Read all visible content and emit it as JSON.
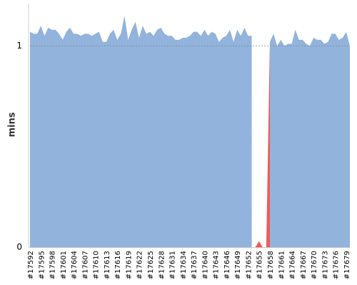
{
  "chart_data": {
    "type": "area",
    "ylabel": "mins",
    "categories": [
      "#17592",
      null,
      null,
      "#17595",
      null,
      null,
      "#17598",
      null,
      null,
      "#17601",
      null,
      null,
      "#17604",
      null,
      null,
      "#17607",
      null,
      null,
      "#17610",
      null,
      null,
      "#17613",
      null,
      null,
      "#17616",
      null,
      null,
      "#17619",
      null,
      null,
      "#17622",
      null,
      null,
      "#17625",
      null,
      null,
      "#17628",
      null,
      null,
      "#17631",
      null,
      null,
      "#17634",
      null,
      null,
      "#17637",
      null,
      null,
      "#17640",
      null,
      null,
      "#17643",
      null,
      null,
      "#17646",
      null,
      null,
      "#17649",
      null,
      null,
      "#17652",
      null,
      null,
      "#17655",
      null,
      null,
      "#17658",
      null,
      null,
      "#17661",
      null,
      null,
      "#17664",
      null,
      null,
      "#17667",
      null,
      null,
      "#17670",
      null,
      null,
      "#17673",
      null,
      null,
      "#17676",
      null,
      null,
      "#17679",
      null
    ],
    "series": [
      {
        "color": "#92b3dc",
        "values": [
          1.07,
          1.06,
          1.06,
          1.1,
          1.05,
          1.09,
          1.08,
          1.08,
          1.06,
          1.03,
          1.07,
          1.09,
          1.06,
          1.06,
          1.05,
          1.06,
          1.06,
          1.05,
          1.06,
          1.07,
          1.02,
          1.02,
          1.06,
          1.08,
          1.03,
          1.06,
          1.15,
          1.03,
          1.08,
          1.12,
          1.04,
          1.1,
          1.06,
          1.07,
          1.05,
          1.08,
          1.09,
          1.06,
          1.05,
          1.05,
          1.03,
          1.03,
          1.04,
          1.04,
          1.05,
          1.07,
          1.07,
          1.05,
          1.08,
          1.05,
          1.07,
          1.06,
          1.02,
          1.04,
          1.05,
          1.08,
          1.02,
          1.08,
          1.05,
          1.09,
          1.05,
          1.05,
          null,
          null,
          null,
          null,
          1.02,
          1.06,
          1.0,
          1.03,
          1.0,
          1.01,
          1.01,
          1.08,
          1.03,
          1.03,
          1.01,
          1.0,
          1.04,
          1.03,
          1.03,
          1.01,
          1.02,
          1.06,
          1.06,
          1.03,
          1.04,
          1.07,
          1.0
        ]
      },
      {
        "color": "#ef5b5b",
        "values": [
          null,
          null,
          null,
          null,
          null,
          null,
          null,
          null,
          null,
          null,
          null,
          null,
          null,
          null,
          null,
          null,
          null,
          null,
          null,
          null,
          null,
          null,
          null,
          null,
          null,
          null,
          null,
          null,
          null,
          null,
          null,
          null,
          null,
          null,
          null,
          null,
          null,
          null,
          null,
          null,
          null,
          null,
          null,
          null,
          null,
          null,
          null,
          null,
          null,
          null,
          null,
          null,
          null,
          null,
          null,
          null,
          null,
          null,
          null,
          null,
          null,
          null,
          0,
          0.03,
          0,
          0,
          1.02,
          null,
          null,
          null,
          null,
          null,
          null,
          null,
          null,
          null,
          null,
          null,
          null,
          null,
          null,
          null,
          null,
          null,
          null,
          null,
          null,
          null,
          null
        ]
      }
    ],
    "ylim": [
      0,
      1.21
    ],
    "yticks": [
      0,
      1
    ],
    "grid": true
  }
}
